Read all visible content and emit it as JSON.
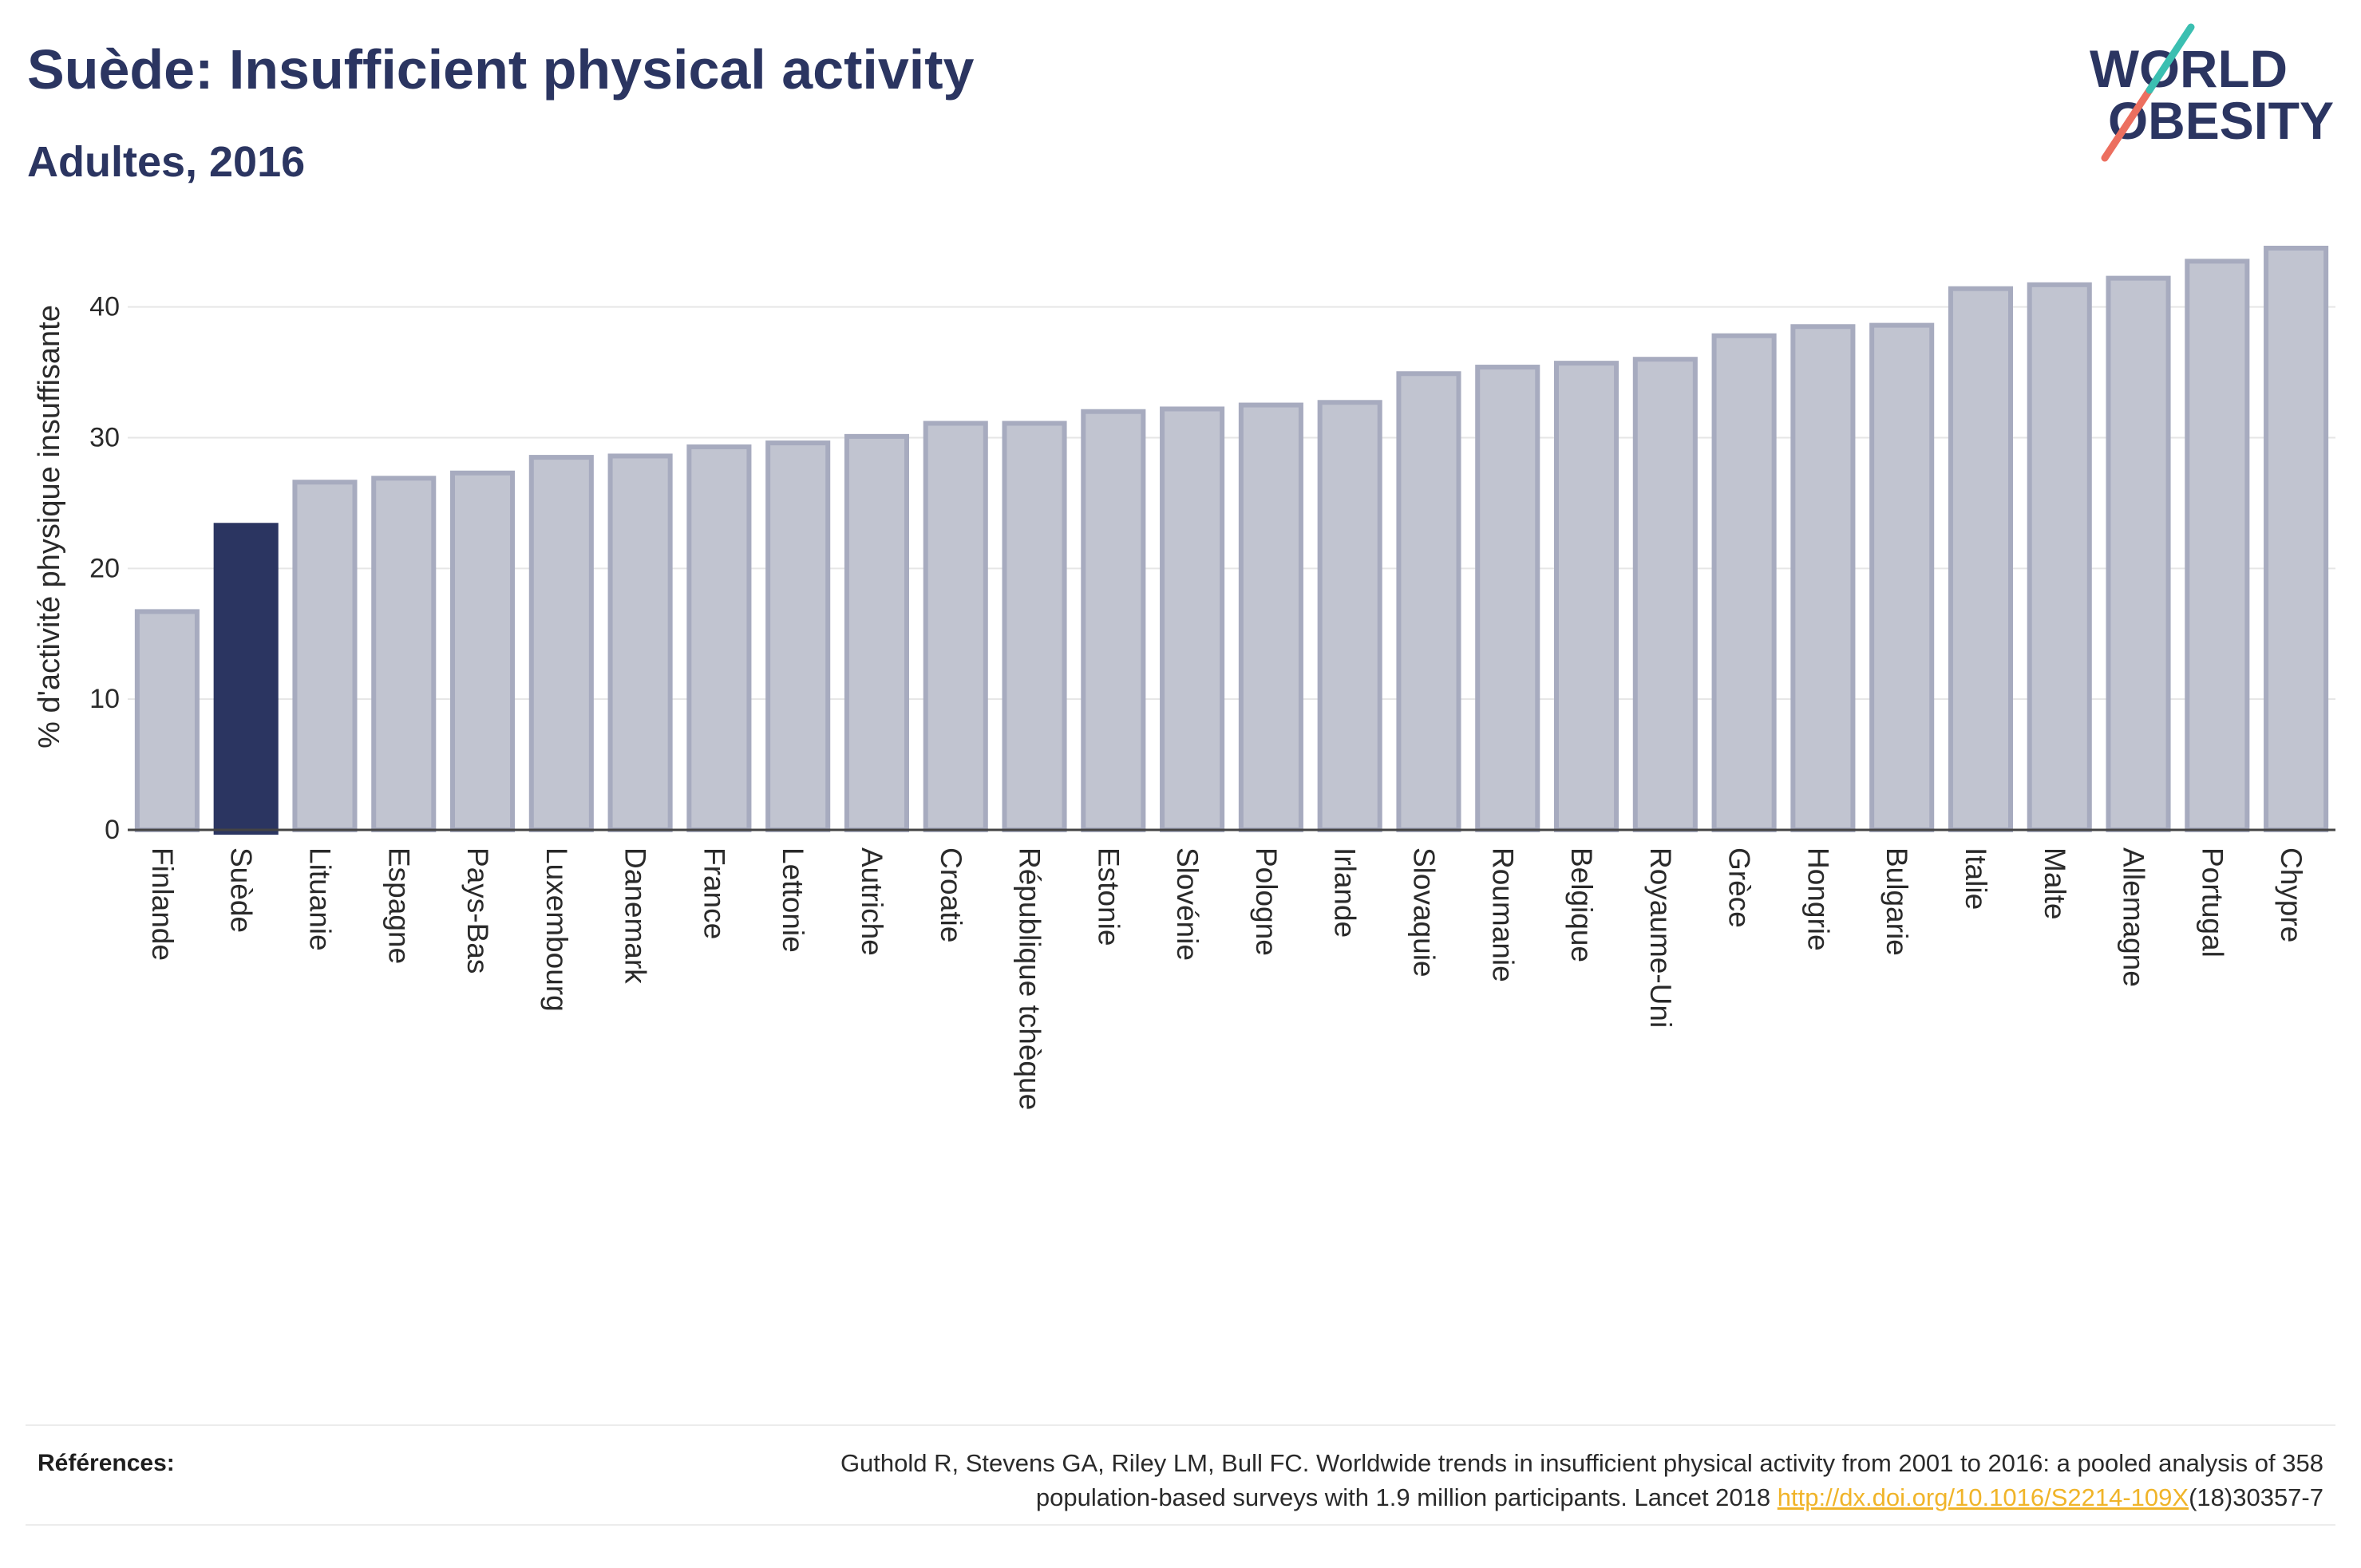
{
  "colors": {
    "title": "#2b3561",
    "highlight_bar": "#2b3561",
    "other_bar": "#c1c4d0",
    "other_bar_border": "#a7abbf",
    "gridline": "#e6e6e6",
    "axis_line": "#444444",
    "link": "#f0b429"
  },
  "logo": {
    "line1": "WORLD",
    "line2": "OBESITY",
    "text_color": "#2b3561",
    "slash_top_color": "#3bbfb1",
    "slash_bottom_color": "#ec6f5f"
  },
  "chart_data": {
    "type": "bar",
    "title": "Suède: Insufficient physical activity",
    "subtitle": "Adultes, 2016",
    "xlabel": "",
    "ylabel": "% d'activité physique insuffisante",
    "categories": [
      "Finlande",
      "Suède",
      "Lituanie",
      "Espagne",
      "Pays-Bas",
      "Luxembourg",
      "Danemark",
      "France",
      "Lettonie",
      "Autriche",
      "Croatie",
      "République tchèque",
      "Estonie",
      "Slovénie",
      "Pologne",
      "Irlande",
      "Slovaquie",
      "Roumanie",
      "Belgique",
      "Royaume-Uni",
      "Grèce",
      "Hongrie",
      "Bulgarie",
      "Italie",
      "Malte",
      "Allemagne",
      "Portugal",
      "Chypre"
    ],
    "values": [
      16.7,
      23.3,
      26.6,
      26.9,
      27.3,
      28.5,
      28.6,
      29.3,
      29.6,
      30.1,
      31.1,
      31.1,
      32.0,
      32.2,
      32.5,
      32.7,
      34.9,
      35.4,
      35.7,
      36.0,
      37.8,
      38.5,
      38.6,
      41.4,
      41.7,
      42.2,
      43.5,
      44.5
    ],
    "highlight_index": 1,
    "ylim": [
      0,
      47
    ],
    "yticks": [
      0,
      10,
      20,
      30,
      40
    ],
    "grid": true
  },
  "references": {
    "label": "Références:",
    "line1": "Guthold R, Stevens GA, Riley LM, Bull FC. Worldwide trends in insufficient physical activity from 2001 to 2016: a pooled analysis of 358",
    "line2_text": "population-based surveys with 1.9 million participants. Lancet 2018 ",
    "link": "http://dx.doi.org/10.1016/S2214-109X",
    "line2_suffix": "(18)30357-7"
  }
}
